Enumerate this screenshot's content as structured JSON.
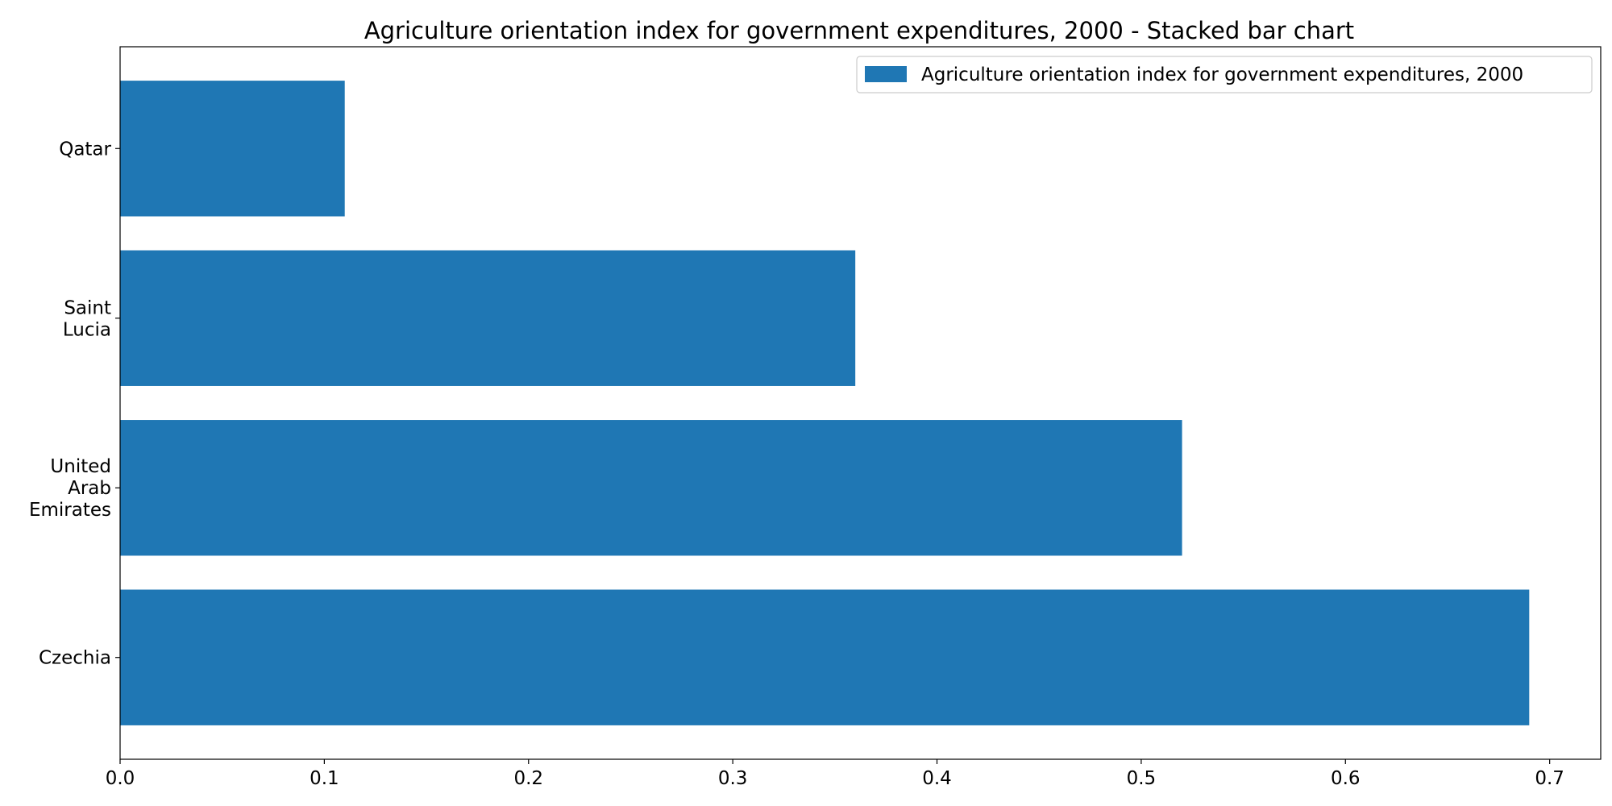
{
  "chart_data": {
    "type": "bar",
    "orientation": "horizontal",
    "title": "Agriculture orientation index for government expenditures, 2000 - Stacked bar chart",
    "xlabel": "",
    "ylabel": "",
    "categories": [
      "Czechia",
      "United Arab Emirates",
      "Saint Lucia",
      "Qatar"
    ],
    "category_lines": [
      [
        "Czechia"
      ],
      [
        "United",
        "Arab",
        "Emirates"
      ],
      [
        "Saint",
        "Lucia"
      ],
      [
        "Qatar"
      ]
    ],
    "series": [
      {
        "name": "Agriculture orientation index for government expenditures, 2000",
        "values": [
          0.69,
          0.52,
          0.36,
          0.11
        ],
        "color": "#1f77b4"
      }
    ],
    "xlim": [
      0,
      0.725
    ],
    "xticks": [
      "0.0",
      "0.1",
      "0.2",
      "0.3",
      "0.4",
      "0.5",
      "0.6",
      "0.7"
    ],
    "grid": false,
    "legend_position": "top-right"
  }
}
